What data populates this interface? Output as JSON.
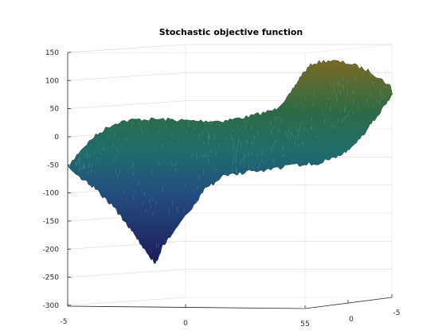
{
  "chart_data": {
    "type": "surface",
    "title": "Stochastic objective function",
    "xlabel": "",
    "ylabel": "",
    "zlabel": "",
    "x_ticks": [
      "-5",
      "0",
      "5"
    ],
    "y_ticks": [
      "5",
      "0",
      "-5"
    ],
    "z_ticks": [
      "150",
      "100",
      "50",
      "0",
      "-50",
      "-100",
      "-150",
      "-200",
      "-250",
      "-300"
    ],
    "xlim": [
      -5,
      5
    ],
    "ylim": [
      -5,
      5
    ],
    "zlim": [
      -300,
      150
    ],
    "grid": true,
    "colormap": "parula-dark",
    "colors": {
      "low": "#22205e",
      "mid": "#1f6b6b",
      "high": "#7a6a25"
    },
    "edge_profile": {
      "description_points_x": [
        -5,
        -3.3,
        -1.7,
        0,
        1.7,
        3.3,
        5
      ],
      "front_edge_z_at_y5": [
        -45,
        -160,
        -225,
        -150,
        -110,
        -60,
        -40
      ],
      "back_edge_z_at_y_minus5": [
        -50,
        10,
        28,
        25,
        30,
        95,
        80
      ]
    }
  }
}
